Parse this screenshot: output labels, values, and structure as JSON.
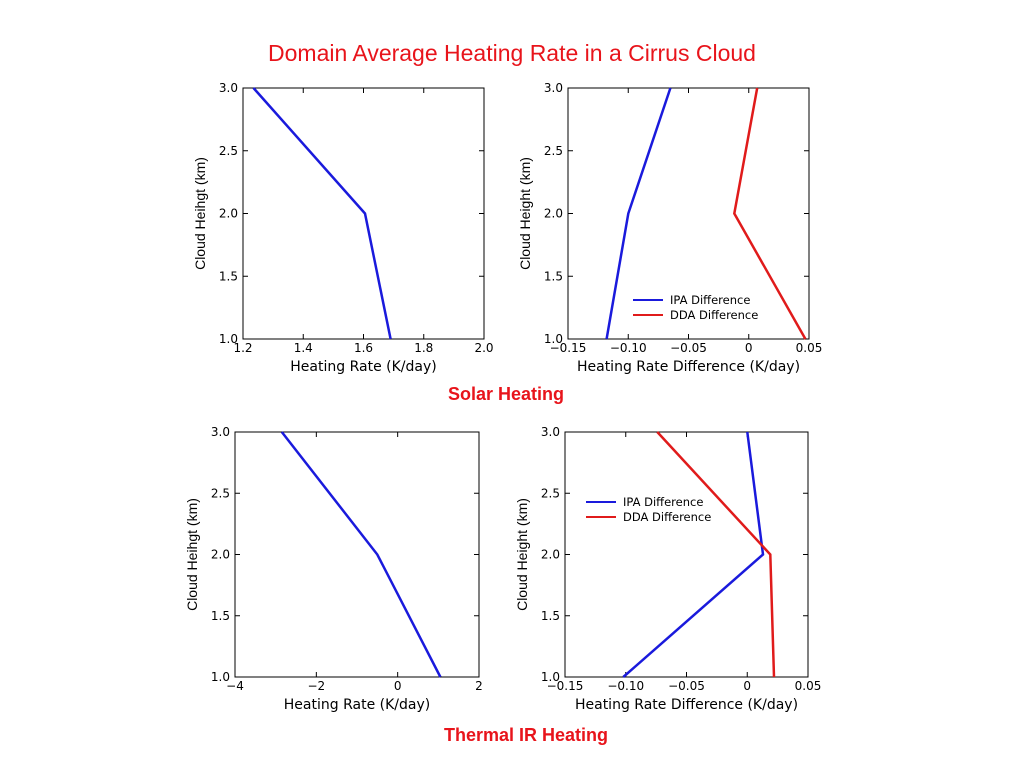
{
  "title": "Domain Average Heating Rate in a Cirrus Cloud",
  "sections": {
    "solar": "Solar Heating",
    "thermal": "Thermal IR Heating"
  },
  "colors": {
    "title": "#e8141b",
    "ipa": "#1a1adc",
    "dda": "#e01b1b"
  },
  "chart_data": [
    {
      "id": "solar-rate",
      "type": "line",
      "xlabel": "Heating Rate (K/day)",
      "ylabel": "Cloud Heihgt (km)",
      "xlim": [
        1.2,
        2.0
      ],
      "ylim": [
        1.0,
        3.0
      ],
      "xticks": [
        "1.2",
        "1.4",
        "1.6",
        "1.8",
        "2.0"
      ],
      "yticks": [
        "1.0",
        "1.5",
        "2.0",
        "2.5",
        "3.0"
      ],
      "series": [
        {
          "color": "#1a1adc",
          "x": [
            1.69,
            1.605,
            1.235
          ],
          "y": [
            1.0,
            2.0,
            3.0
          ]
        }
      ]
    },
    {
      "id": "solar-diff",
      "type": "line",
      "xlabel": "Heating Rate Difference (K/day)",
      "ylabel": "Cloud Height (km)",
      "xlim": [
        -0.15,
        0.05
      ],
      "ylim": [
        1.0,
        3.0
      ],
      "xticks": [
        "−0.15",
        "−0.10",
        "−0.05",
        "0",
        "0.05"
      ],
      "yticks": [
        "1.0",
        "1.5",
        "2.0",
        "2.5",
        "3.0"
      ],
      "legend": "bottom-right",
      "series": [
        {
          "name": "IPA Difference",
          "color": "#1a1adc",
          "x": [
            -0.118,
            -0.1,
            -0.065
          ],
          "y": [
            1.0,
            2.0,
            3.0
          ]
        },
        {
          "name": "DDA Difference",
          "color": "#e01b1b",
          "x": [
            0.047,
            -0.012,
            0.007
          ],
          "y": [
            1.0,
            2.0,
            3.0
          ]
        }
      ]
    },
    {
      "id": "thermal-rate",
      "type": "line",
      "xlabel": "Heating Rate (K/day)",
      "ylabel": "Cloud Heihgt (km)",
      "xlim": [
        -4,
        2
      ],
      "ylim": [
        1.0,
        3.0
      ],
      "xticks": [
        "−4",
        "−2",
        "0",
        "2"
      ],
      "yticks": [
        "1.0",
        "1.5",
        "2.0",
        "2.5",
        "3.0"
      ],
      "series": [
        {
          "color": "#1a1adc",
          "x": [
            1.05,
            -0.5,
            -2.85
          ],
          "y": [
            1.0,
            2.0,
            3.0
          ]
        }
      ]
    },
    {
      "id": "thermal-diff",
      "type": "line",
      "xlabel": "Heating Rate Difference (K/day)",
      "ylabel": "Cloud Height (km)",
      "xlim": [
        -0.15,
        0.05
      ],
      "ylim": [
        1.0,
        3.0
      ],
      "xticks": [
        "−0.15",
        "−0.10",
        "−0.05",
        "0",
        "0.05"
      ],
      "yticks": [
        "1.0",
        "1.5",
        "2.0",
        "2.5",
        "3.0"
      ],
      "legend": "upper-left",
      "series": [
        {
          "name": "IPA Difference",
          "color": "#1a1adc",
          "x": [
            -0.102,
            0.013,
            0.0
          ],
          "y": [
            1.0,
            2.0,
            3.0
          ]
        },
        {
          "name": "DDA Difference",
          "color": "#e01b1b",
          "x": [
            0.022,
            0.019,
            -0.074
          ],
          "y": [
            1.0,
            2.0,
            3.0
          ]
        }
      ]
    }
  ]
}
